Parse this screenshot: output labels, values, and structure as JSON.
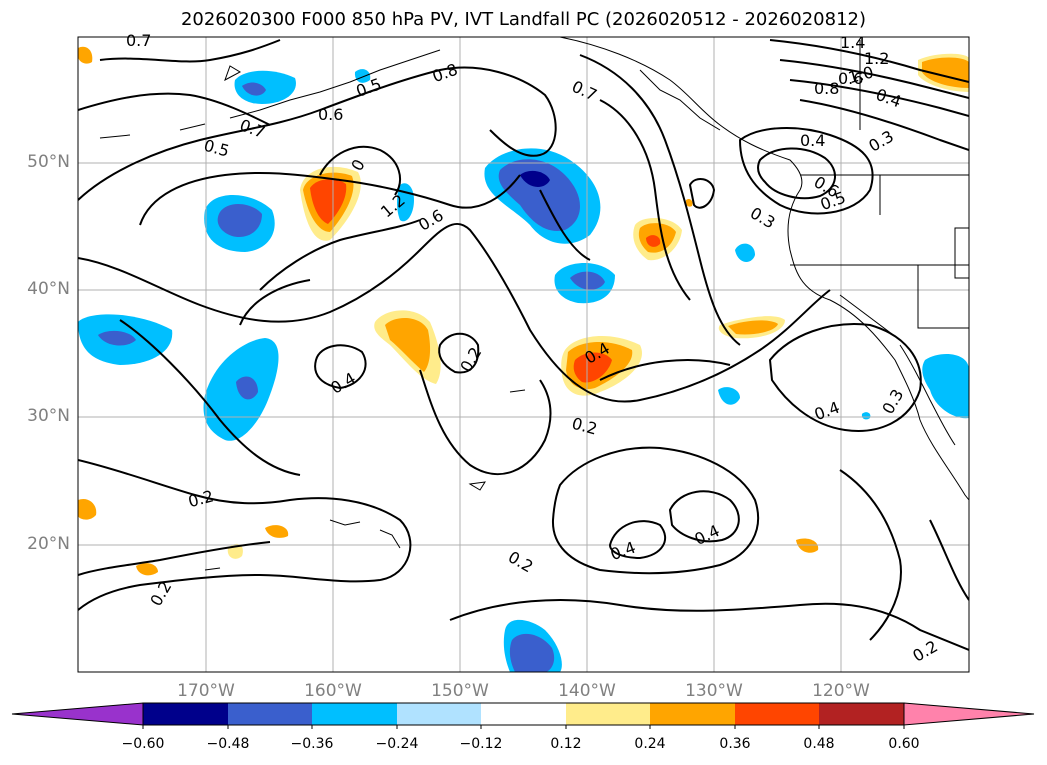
{
  "title": "2026020300 F000 850 hPa PV, IVT Landfall PC (2026020512 - 2026020812)",
  "axes": {
    "lat_labels": [
      "50°N",
      "40°N",
      "30°N",
      "20°N"
    ],
    "lon_labels": [
      "170°W",
      "160°W",
      "150°W",
      "140°W",
      "130°W",
      "120°W"
    ]
  },
  "colorbar": {
    "ticks": [
      "−0.60",
      "−0.48",
      "−0.36",
      "−0.24",
      "−0.12",
      "0.12",
      "0.24",
      "0.36",
      "0.48",
      "0.60"
    ],
    "colors": [
      "#9932cc",
      "#00008b",
      "#3a5fcd",
      "#00bfff",
      "#b0e2ff",
      "#ffffff",
      "#ffec8b",
      "#ffa500",
      "#ff4500",
      "#b22222",
      "#ff82ab"
    ]
  },
  "contour_labels": [
    "0.7",
    "0.7",
    "0.5",
    "0.6",
    "0.8",
    "0.7",
    "0.5",
    "1.2",
    "0.6",
    "0",
    "1.4",
    "1.2",
    "1.0",
    "0.8",
    "0.6",
    "0.4",
    "0.3",
    "0.4",
    "0.5",
    "0.6",
    "0.3",
    "0.4",
    "0.2",
    "0.4",
    "0.2",
    "0.4",
    "0.3",
    "0.2",
    "0.2",
    "0.4",
    "0.4",
    "0.2",
    "0.2"
  ],
  "chart_data": {
    "type": "contour_map",
    "projection": "PlateCarree",
    "lon_range": [
      -180,
      -110
    ],
    "lat_range": [
      10,
      60
    ],
    "variable_shaded": "IVT Landfall PC",
    "variable_contoured": "850 hPa PV",
    "colorbar_levels": [
      -0.6,
      -0.48,
      -0.36,
      -0.24,
      -0.12,
      0.12,
      0.24,
      0.36,
      0.48,
      0.6
    ],
    "contour_levels_labeled": [
      0.2,
      0.3,
      0.4,
      0.5,
      0.6,
      0.7,
      0.8,
      1.0,
      1.2,
      1.4
    ]
  }
}
